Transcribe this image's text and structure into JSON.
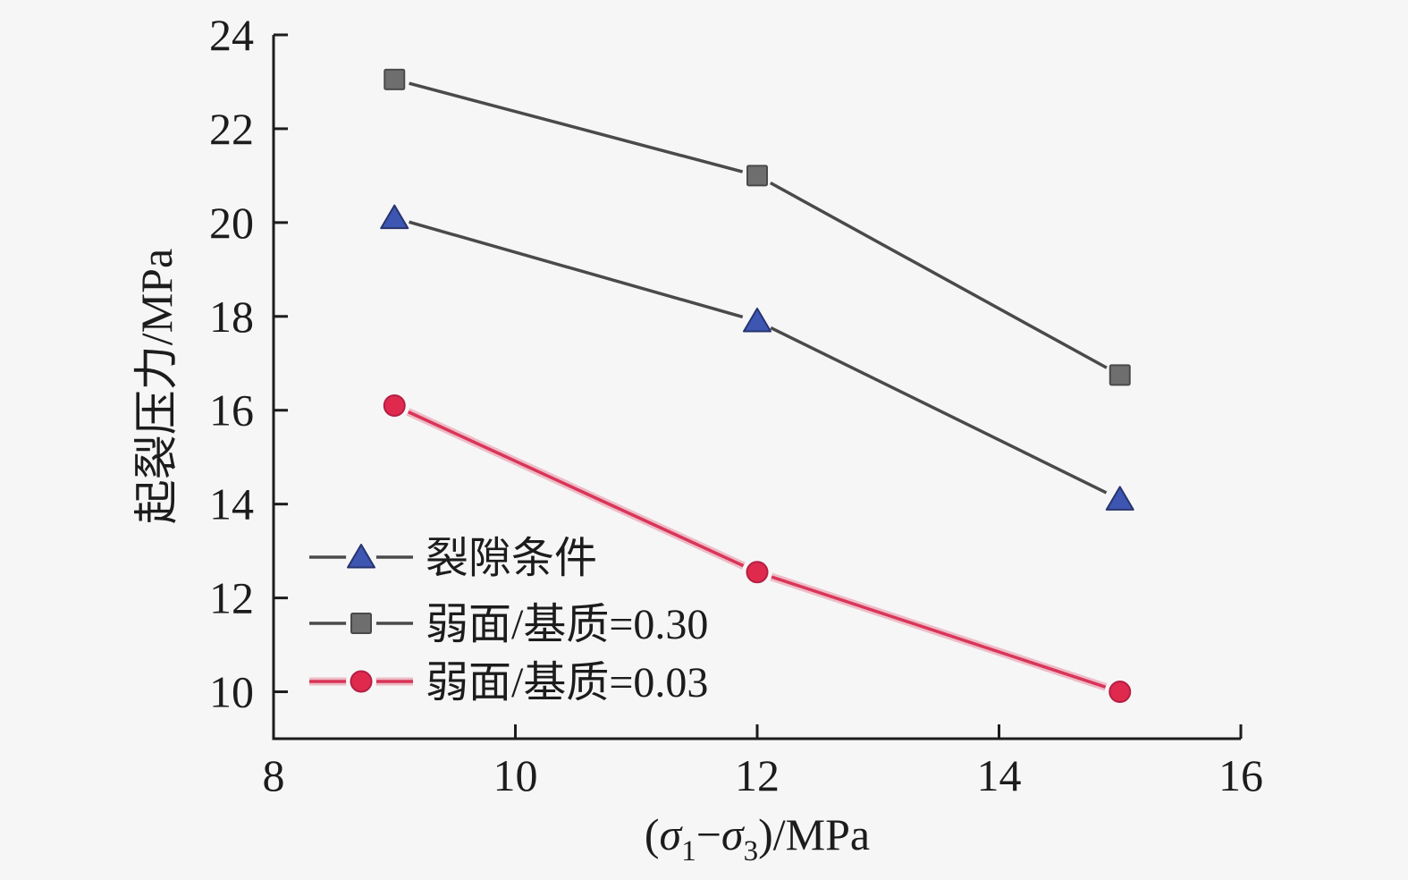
{
  "style": {
    "background": "#f6f6f6",
    "axis_color": "#1c1c1c",
    "dark_line_color": "#4a4a4a",
    "red_line_color": "#d93558"
  },
  "chart_data": {
    "type": "line",
    "x": [
      9,
      12,
      15
    ],
    "series": [
      {
        "name": "裂隙条件",
        "values": [
          20.1,
          17.9,
          14.1
        ],
        "marker": "triangle",
        "marker_color": "#3d56b2",
        "marker_edge": "#27346e",
        "line_color": "#4a4a4a",
        "glow": false
      },
      {
        "name": "弱面/基质=0.30",
        "values": [
          23.05,
          21.0,
          16.75
        ],
        "marker": "square",
        "marker_color": "#6e6e6e",
        "marker_edge": "#4a4a4a",
        "line_color": "#4a4a4a",
        "glow": false
      },
      {
        "name": "弱面/基质=0.03",
        "values": [
          16.1,
          12.55,
          10.0
        ],
        "marker": "circle",
        "marker_color": "#df2a4e",
        "marker_edge": "#b51f44",
        "line_color": "#d93558",
        "glow": true
      }
    ],
    "xlabel": "(σ1−σ3)/MPa",
    "xlabel_parts": {
      "open": "(",
      "sigma1": "σ",
      "sub1": "1",
      "minus": "−",
      "sigma2": "σ",
      "sub3": "3",
      "close": ")/MPa"
    },
    "ylabel": "起裂压力/MPa",
    "xlim": [
      8,
      16
    ],
    "ylim": [
      9,
      24
    ],
    "xticks": [
      8,
      10,
      12,
      14,
      16
    ],
    "yticks": [
      10,
      12,
      14,
      16,
      18,
      20,
      22,
      24
    ],
    "grid": false,
    "legend_position": "inside lower-left"
  }
}
